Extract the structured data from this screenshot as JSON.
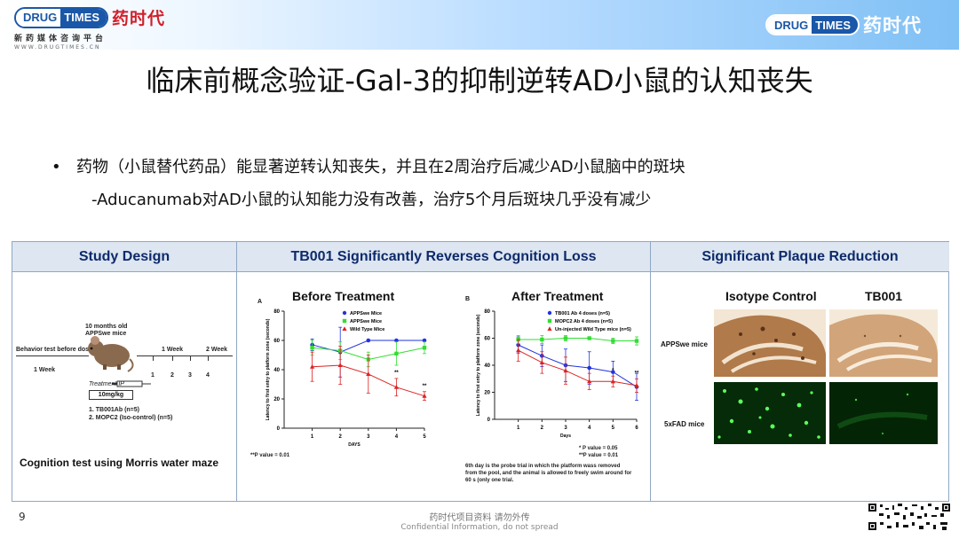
{
  "header": {
    "logo_left": {
      "en_a": "DRUG",
      "en_b": "TIMES",
      "cn": "药时代",
      "sub": "新药媒体咨询平台",
      "url": "WWW.DRUGTIMES.CN"
    },
    "logo_right": {
      "en_a": "DRUG",
      "en_b": "TIMES",
      "cn": "药时代"
    }
  },
  "title": "临床前概念验证-Gal-3的抑制逆转AD小鼠的认知丧失",
  "bullets": {
    "marker": "•",
    "b1": "药物（小鼠替代药品）能显著逆转认知丧失，并且在2周治疗后减少AD小鼠脑中的斑块",
    "b2": "-Aducanumab对AD小鼠的认知能力没有改善，治疗5个月后斑块几乎没有减少"
  },
  "figure": {
    "headers": {
      "study": "Study Design",
      "cognition": "TB001 Significantly Reverses Cognition Loss",
      "plaque": "Significant Plaque Reduction"
    },
    "study": {
      "mouse_label_1": "10 months old",
      "mouse_label_2": "APPSwe mice",
      "behavior": "Behavior test before dosing",
      "week_before": "1 Week",
      "week_1": "1 Week",
      "week_2": "2 Week",
      "t1": "1",
      "t2": "2",
      "t3": "3",
      "t4": "4",
      "treatment": "Treatment IP",
      "dose": "10mg/kg",
      "group1": "1.   TB001Ab (n=5)",
      "group2": "2.   MOPC2 (Iso-control) (n=5)",
      "cognition_test": "Cognition test using Morris water maze"
    },
    "chart_a_note": "**P value = 0.01",
    "chart_b_notes": {
      "p1": "* P value = 0.05",
      "p2": "**P value = 0.01",
      "foot1": "6th day is the probe trial in which the platform wass removed",
      "foot2": "from the pool, and the animal is allowed to freely swim around for",
      "foot3": "60 s (only one trial."
    },
    "plaque": {
      "col1": "Isotype Control",
      "col2": "TB001",
      "row1": "APPSwe mice",
      "row2": "5xFAD mice"
    }
  },
  "chart_data": [
    {
      "type": "line",
      "panel": "A",
      "title": "Before Treatment",
      "xlabel": "DAYS",
      "ylabel": "Latency to first entry to platform zone (seconds)",
      "x": [
        1,
        2,
        3,
        4,
        5
      ],
      "xlim": [
        0,
        5
      ],
      "ylim": [
        0,
        80
      ],
      "yticks": [
        0,
        20,
        40,
        60,
        80
      ],
      "legend_position": "top-right",
      "series": [
        {
          "name": "APPSwe Mice",
          "color": "#2233dd",
          "marker": "circle",
          "values": [
            57,
            52,
            60,
            60,
            60
          ],
          "err": [
            4,
            17,
            0,
            0,
            0
          ]
        },
        {
          "name": "APPSwe Mice",
          "color": "#33dd33",
          "marker": "square",
          "values": [
            55,
            53,
            47,
            51,
            55
          ],
          "err": [
            5,
            6,
            5,
            8,
            4
          ]
        },
        {
          "name": "Wild Type Mice",
          "color": "#dd2222",
          "marker": "triangle",
          "values": [
            42,
            43,
            37,
            28,
            22
          ],
          "err": [
            10,
            13,
            13,
            6,
            3
          ]
        }
      ],
      "annotations": [
        "**",
        "**"
      ]
    },
    {
      "type": "line",
      "panel": "B",
      "title": "After Treatment",
      "xlabel": "Days",
      "ylabel": "Latency to first entry to platform zone (seconds)",
      "x": [
        1,
        2,
        3,
        4,
        5,
        6
      ],
      "xlim": [
        0,
        6
      ],
      "ylim": [
        0,
        80
      ],
      "yticks": [
        0,
        20,
        40,
        60,
        80
      ],
      "legend_position": "top-right",
      "series": [
        {
          "name": "TB001 Ab 4 doses (n=5)",
          "color": "#2233dd",
          "marker": "circle",
          "values": [
            55,
            47,
            40,
            38,
            35,
            24
          ],
          "err": [
            6,
            8,
            12,
            12,
            8,
            10
          ]
        },
        {
          "name": "MOPC2 Ab 4 doses (n=5)",
          "color": "#33dd33",
          "marker": "square",
          "values": [
            59,
            59,
            60,
            60,
            58,
            58
          ],
          "err": [
            3,
            3,
            2,
            1,
            2,
            3
          ]
        },
        {
          "name": "Un-injected Wild Type mice (n=5)",
          "color": "#dd2222",
          "marker": "triangle",
          "values": [
            51,
            42,
            36,
            28,
            28,
            25
          ],
          "err": [
            8,
            8,
            10,
            6,
            4,
            5
          ]
        }
      ],
      "annotations": [
        "*",
        "**"
      ]
    }
  ],
  "footer": {
    "page": "9",
    "line1": "药时代项目资料 请勿外传",
    "line2": "Confidential Information, do not spread"
  }
}
